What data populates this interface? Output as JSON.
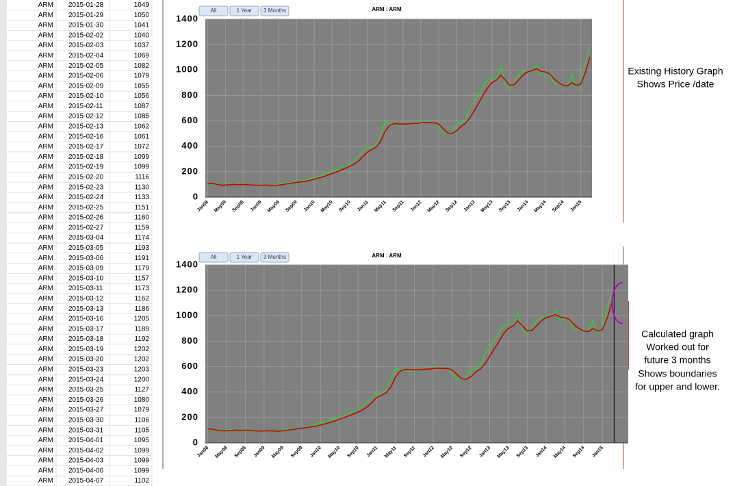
{
  "table": {
    "rows": [
      [
        "ARM",
        "2015-01-28",
        1049
      ],
      [
        "ARM",
        "2015-01-29",
        1050
      ],
      [
        "ARM",
        "2015-01-30",
        1041
      ],
      [
        "ARM",
        "2015-02-02",
        1040
      ],
      [
        "ARM",
        "2015-02-03",
        1037
      ],
      [
        "ARM",
        "2015-02-04",
        1069
      ],
      [
        "ARM",
        "2015-02-05",
        1082
      ],
      [
        "ARM",
        "2015-02-06",
        1079
      ],
      [
        "ARM",
        "2015-02-09",
        1055
      ],
      [
        "ARM",
        "2015-02-10",
        1056
      ],
      [
        "ARM",
        "2015-02-11",
        1087
      ],
      [
        "ARM",
        "2015-02-12",
        1085
      ],
      [
        "ARM",
        "2015-02-13",
        1062
      ],
      [
        "ARM",
        "2015-02-16",
        1061
      ],
      [
        "ARM",
        "2015-02-17",
        1072
      ],
      [
        "ARM",
        "2015-02-18",
        1099
      ],
      [
        "ARM",
        "2015-02-19",
        1099
      ],
      [
        "ARM",
        "2015-02-20",
        1116
      ],
      [
        "ARM",
        "2015-02-23",
        1130
      ],
      [
        "ARM",
        "2015-02-24",
        1133
      ],
      [
        "ARM",
        "2015-02-25",
        1151
      ],
      [
        "ARM",
        "2015-02-26",
        1160
      ],
      [
        "ARM",
        "2015-02-27",
        1159
      ],
      [
        "ARM",
        "2015-03-04",
        1174
      ],
      [
        "ARM",
        "2015-03-05",
        1193
      ],
      [
        "ARM",
        "2015-03-06",
        1191
      ],
      [
        "ARM",
        "2015-03-09",
        1179
      ],
      [
        "ARM",
        "2015-03-10",
        1157
      ],
      [
        "ARM",
        "2015-03-11",
        1173
      ],
      [
        "ARM",
        "2015-03-12",
        1162
      ],
      [
        "ARM",
        "2015-03-13",
        1186
      ],
      [
        "ARM",
        "2015-03-16",
        1205
      ],
      [
        "ARM",
        "2015-03-17",
        1189
      ],
      [
        "ARM",
        "2015-03-18",
        1192
      ],
      [
        "ARM",
        "2015-03-19",
        1202
      ],
      [
        "ARM",
        "2015-03-20",
        1202
      ],
      [
        "ARM",
        "2015-03-23",
        1203
      ],
      [
        "ARM",
        "2015-03-24",
        1200
      ],
      [
        "ARM",
        "2015-03-25",
        1127
      ],
      [
        "ARM",
        "2015-03-26",
        1080
      ],
      [
        "ARM",
        "2015-03-27",
        1079
      ],
      [
        "ARM",
        "2015-03-30",
        1106
      ],
      [
        "ARM",
        "2015-03-31",
        1105
      ],
      [
        "ARM",
        "2015-04-01",
        1095
      ],
      [
        "ARM",
        "2015-04-02",
        1099
      ],
      [
        "ARM",
        "2015-04-03",
        1099
      ],
      [
        "ARM",
        "2015-04-06",
        1099
      ],
      [
        "ARM",
        "2015-04-07",
        1102
      ]
    ]
  },
  "notes": {
    "history": [
      "Existing History Graph",
      "Shows Price /date"
    ],
    "forecast": [
      "Calculated graph",
      "Worked out for",
      "future 3 months",
      "Shows boundaries",
      "for upper and lower."
    ]
  },
  "chart_data": [
    {
      "type": "line",
      "title": "ARM : ARM",
      "buttons": [
        "All",
        "1 Year",
        "3 Months"
      ],
      "background": "#808080",
      "grid": true,
      "categories": [
        "Jan08",
        null,
        null,
        null,
        "May08",
        null,
        null,
        null,
        "Sep08",
        null,
        null,
        null,
        "Jan09",
        null,
        null,
        null,
        "May09",
        null,
        null,
        null,
        "Sep09",
        null,
        null,
        null,
        "Jan10",
        null,
        null,
        null,
        "May10",
        null,
        null,
        null,
        "Sep10",
        null,
        null,
        null,
        "Jan11",
        null,
        null,
        null,
        "May11",
        null,
        null,
        null,
        "Sep11",
        null,
        null,
        null,
        "Jan12",
        null,
        null,
        null,
        "May12",
        null,
        null,
        null,
        "Sep12",
        null,
        null,
        null,
        "Jan13",
        null,
        null,
        null,
        "May13",
        null,
        null,
        null,
        "Sep13",
        null,
        null,
        null,
        "Jan14",
        null,
        null,
        null,
        "May14",
        null,
        null,
        null,
        "Sep14",
        null,
        null,
        null,
        "Jan15",
        null,
        null
      ],
      "ylim": [
        0,
        1400
      ],
      "yticks": [
        0,
        200,
        400,
        600,
        800,
        1000,
        1200,
        1400
      ],
      "series": [
        {
          "color": "#33cc33",
          "values": [
            115,
            105,
            95,
            90,
            100,
            105,
            95,
            100,
            105,
            95,
            90,
            95,
            100,
            95,
            90,
            95,
            100,
            110,
            115,
            110,
            120,
            130,
            130,
            145,
            155,
            160,
            175,
            190,
            205,
            215,
            235,
            245,
            260,
            290,
            320,
            360,
            395,
            380,
            420,
            500,
            590,
            570,
            590,
            560,
            580,
            570,
            590,
            580,
            595,
            590,
            580,
            590,
            560,
            500,
            500,
            510,
            580,
            580,
            600,
            700,
            750,
            800,
            870,
            920,
            940,
            930,
            1030,
            880,
            860,
            900,
            960,
            990,
            1000,
            990,
            1040,
            960,
            990,
            960,
            890,
            900,
            870,
            880,
            960,
            860,
            900,
            1060,
            1180
          ]
        },
        {
          "color": "#cc0000",
          "values": [
            110,
            108,
            100,
            95,
            95,
            98,
            100,
            98,
            100,
            98,
            95,
            93,
            95,
            95,
            93,
            92,
            95,
            100,
            105,
            110,
            115,
            120,
            125,
            132,
            140,
            150,
            160,
            172,
            185,
            198,
            212,
            228,
            242,
            260,
            285,
            320,
            355,
            375,
            395,
            440,
            520,
            565,
            580,
            575,
            575,
            575,
            580,
            580,
            585,
            588,
            585,
            585,
            575,
            540,
            505,
            500,
            520,
            555,
            580,
            620,
            680,
            740,
            800,
            860,
            900,
            920,
            960,
            920,
            880,
            885,
            920,
            960,
            985,
            995,
            1010,
            990,
            985,
            970,
            930,
            900,
            880,
            875,
            900,
            880,
            890,
            980,
            1100
          ]
        }
      ]
    },
    {
      "type": "line",
      "title": "ARM : ARM",
      "buttons": [
        "All",
        "1 Year",
        "3 Months"
      ],
      "background": "#808080",
      "grid": true,
      "categories": [
        "Jan08",
        null,
        null,
        null,
        "May08",
        null,
        null,
        null,
        "Sep08",
        null,
        null,
        null,
        "Jan09",
        null,
        null,
        null,
        "May09",
        null,
        null,
        null,
        "Sep09",
        null,
        null,
        null,
        "Jan10",
        null,
        null,
        null,
        "May10",
        null,
        null,
        null,
        "Sep10",
        null,
        null,
        null,
        "Jan11",
        null,
        null,
        null,
        "May11",
        null,
        null,
        null,
        "Sep11",
        null,
        null,
        null,
        "Jan12",
        null,
        null,
        null,
        "May12",
        null,
        null,
        null,
        "Sep12",
        null,
        null,
        null,
        "Jan13",
        null,
        null,
        null,
        "May13",
        null,
        null,
        null,
        "Sep13",
        null,
        null,
        null,
        "Jan14",
        null,
        null,
        null,
        "May14",
        null,
        null,
        null,
        "Sep14",
        null,
        null,
        null,
        "Jan15",
        null,
        null,
        null,
        null,
        null
      ],
      "ylim": [
        0,
        1400
      ],
      "yticks": [
        0,
        200,
        400,
        600,
        800,
        1000,
        1200,
        1400
      ],
      "series": [
        {
          "color": "#33cc33",
          "values": [
            115,
            105,
            95,
            90,
            100,
            105,
            95,
            100,
            105,
            95,
            90,
            95,
            100,
            95,
            90,
            95,
            100,
            110,
            115,
            110,
            120,
            130,
            130,
            145,
            155,
            160,
            175,
            190,
            205,
            215,
            235,
            245,
            260,
            290,
            320,
            360,
            395,
            380,
            420,
            500,
            590,
            570,
            590,
            560,
            580,
            570,
            590,
            580,
            595,
            590,
            580,
            590,
            560,
            500,
            500,
            510,
            580,
            580,
            600,
            700,
            750,
            800,
            870,
            920,
            940,
            930,
            1030,
            880,
            860,
            900,
            960,
            990,
            1000,
            990,
            1040,
            960,
            990,
            960,
            890,
            900,
            870,
            880,
            960,
            860,
            900,
            1060,
            1180,
            null,
            null,
            null
          ]
        },
        {
          "color": "#cc0000",
          "values": [
            110,
            108,
            100,
            95,
            95,
            98,
            100,
            98,
            100,
            98,
            95,
            93,
            95,
            95,
            93,
            92,
            95,
            100,
            105,
            110,
            115,
            120,
            125,
            132,
            140,
            150,
            160,
            172,
            185,
            198,
            212,
            228,
            242,
            260,
            285,
            320,
            355,
            375,
            395,
            440,
            520,
            565,
            580,
            575,
            575,
            575,
            580,
            580,
            585,
            588,
            585,
            585,
            575,
            540,
            505,
            500,
            520,
            555,
            580,
            620,
            680,
            740,
            800,
            860,
            900,
            920,
            960,
            920,
            880,
            885,
            920,
            960,
            985,
            995,
            1010,
            990,
            985,
            970,
            930,
            900,
            880,
            875,
            900,
            880,
            890,
            980,
            1100,
            null,
            null,
            null
          ]
        }
      ],
      "forecast": {
        "upper": 1260,
        "lower": 940,
        "color": "#c000c0"
      }
    }
  ]
}
